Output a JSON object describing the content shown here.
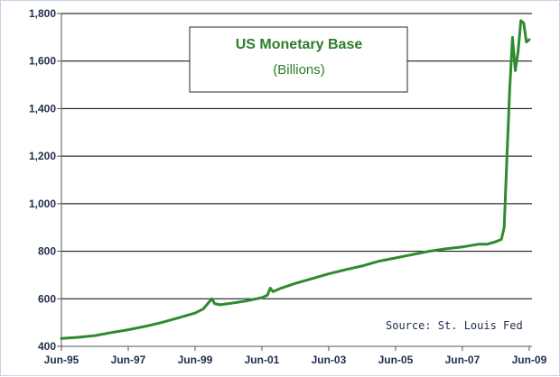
{
  "chart_data": {
    "type": "line",
    "title": "US Monetary Base",
    "subtitle": "(Billions)",
    "source": "Source: St. Louis Fed",
    "xlabel": "",
    "ylabel": "",
    "xlim": [
      "1995-06",
      "2009-07"
    ],
    "ylim": [
      400,
      1800
    ],
    "y_ticks": [
      400,
      600,
      800,
      1000,
      1200,
      1400,
      1600,
      1800
    ],
    "y_tick_labels": [
      "400",
      "600",
      "800",
      "1,000",
      "1,200",
      "1,400",
      "1,600",
      "1,800"
    ],
    "x_ticks": [
      "1995-06",
      "1997-06",
      "1999-06",
      "2001-06",
      "2003-06",
      "2005-06",
      "2007-06",
      "2009-06"
    ],
    "x_tick_labels": [
      "Jun-95",
      "Jun-97",
      "Jun-99",
      "Jun-01",
      "Jun-03",
      "Jun-05",
      "Jun-07",
      "Jun-09"
    ],
    "grid": "horizontal",
    "legend": "none",
    "colors": {
      "line": "#2e8b2e",
      "title": "#2b7d2b",
      "grid": "#000000",
      "text": "#1f2d4d"
    },
    "series": [
      {
        "x": [
          "1995-06",
          "1995-12",
          "1996-06",
          "1996-12",
          "1997-06",
          "1997-12",
          "1998-06",
          "1998-12",
          "1999-06",
          "1999-09",
          "1999-12",
          "2000-01",
          "2000-03",
          "2000-06",
          "2000-12",
          "2001-06",
          "2001-08",
          "2001-09",
          "2001-10",
          "2002-01",
          "2002-06",
          "2002-12",
          "2003-06",
          "2003-12",
          "2004-06",
          "2004-12",
          "2005-06",
          "2005-12",
          "2006-06",
          "2006-12",
          "2007-06",
          "2007-12",
          "2008-03",
          "2008-06",
          "2008-08",
          "2008-09",
          "2008-10",
          "2008-11",
          "2008-12",
          "2009-01",
          "2009-02",
          "2009-03",
          "2009-04",
          "2009-05",
          "2009-06"
        ],
        "values": [
          433,
          438,
          445,
          458,
          470,
          484,
          500,
          520,
          540,
          558,
          600,
          580,
          575,
          580,
          590,
          605,
          615,
          645,
          630,
          645,
          665,
          685,
          705,
          722,
          738,
          758,
          772,
          786,
          800,
          810,
          818,
          830,
          830,
          840,
          850,
          900,
          1200,
          1480,
          1700,
          1560,
          1640,
          1770,
          1760,
          1680,
          1690
        ]
      }
    ]
  }
}
